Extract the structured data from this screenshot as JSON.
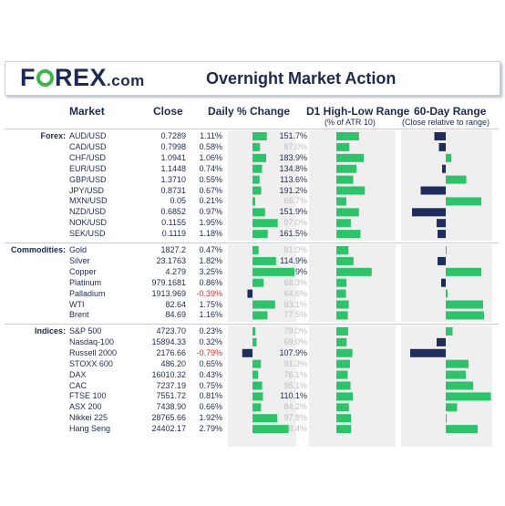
{
  "header": {
    "logo_pre": "F",
    "logo_post": "REX",
    "logo_com": ".com",
    "title": "Overnight Market Action"
  },
  "columns": {
    "market": "Market",
    "close": "Close",
    "change": "Daily % Change",
    "range": "D1 High-Low Range",
    "range_sub": "(% of ATR 10)",
    "day60": "60-Day Range",
    "day60_sub": "(Close relative to range)"
  },
  "colors": {
    "positive": "#2ec26b",
    "negative": "#1f2c5c",
    "negative_text": "#d32f2f",
    "dim_text": "#b9bec6",
    "pane": "#efefef"
  },
  "chart_data": {
    "type": "table",
    "sections": [
      {
        "label": "Forex:",
        "rows": [
          {
            "market": "AUD/USD",
            "close": "0.7289",
            "change": "1.11%",
            "change_val": 1.11,
            "range": "151.7%",
            "range_val": 151.7,
            "day60": -0.25
          },
          {
            "market": "CAD/USD",
            "close": "0.7998",
            "change": "0.58%",
            "change_val": 0.58,
            "range": "87.0%",
            "range_val": 87.0,
            "day60": -0.15
          },
          {
            "market": "CHF/USD",
            "close": "1.0941",
            "change": "1.06%",
            "change_val": 1.06,
            "range": "183.9%",
            "range_val": 183.9,
            "day60": 0.12
          },
          {
            "market": "EUR/USD",
            "close": "1.1448",
            "change": "0.74%",
            "change_val": 0.74,
            "range": "134.8%",
            "range_val": 134.8,
            "day60": -0.08
          },
          {
            "market": "GBP/USD",
            "close": "1.3710",
            "change": "0.55%",
            "change_val": 0.55,
            "range": "113.6%",
            "range_val": 113.6,
            "day60": 0.45
          },
          {
            "market": "JPY/USD",
            "close": "0.8731",
            "change": "0.67%",
            "change_val": 0.67,
            "range": "191.2%",
            "range_val": 191.2,
            "day60": -0.55
          },
          {
            "market": "MXN/USD",
            "close": "0.05",
            "change": "0.21%",
            "change_val": 0.21,
            "range": "66.7%",
            "range_val": 66.7,
            "day60": 0.78
          },
          {
            "market": "NZD/USD",
            "close": "0.6852",
            "change": "0.97%",
            "change_val": 0.97,
            "range": "151.9%",
            "range_val": 151.9,
            "day60": -0.74
          },
          {
            "market": "NOK/USD",
            "close": "0.1155",
            "change": "1.95%",
            "change_val": 1.95,
            "range": "97.0%",
            "range_val": 97.0,
            "day60": -0.2
          },
          {
            "market": "SEK/USD",
            "close": "0.1119",
            "change": "1.18%",
            "change_val": 1.18,
            "range": "161.5%",
            "range_val": 161.5,
            "day60": -0.18
          }
        ]
      },
      {
        "label": "Commodities:",
        "rows": [
          {
            "market": "Gold",
            "close": "1827.2",
            "change": "0.47%",
            "change_val": 0.47,
            "range": "81.0%",
            "range_val": 81.0,
            "day60": 0
          },
          {
            "market": "Silver",
            "close": "23.1763",
            "change": "1.82%",
            "change_val": 1.82,
            "range": "114.9%",
            "range_val": 114.9,
            "day60": -0.18
          },
          {
            "market": "Copper",
            "close": "4.279",
            "change": "3.25%",
            "change_val": 3.25,
            "range": "236.9%",
            "range_val": 236.9,
            "day60": 0.78
          },
          {
            "market": "Platinum",
            "close": "979.1681",
            "change": "0.86%",
            "change_val": 0.86,
            "range": "68.3%",
            "range_val": 68.3,
            "day60": -0.1
          },
          {
            "market": "Palladium",
            "close": "1913.969",
            "change": "-0.39%",
            "change_val": -0.39,
            "range": "64.6%",
            "range_val": 64.6,
            "day60": 0.04
          },
          {
            "market": "WTI",
            "close": "82.64",
            "change": "1.75%",
            "change_val": 1.75,
            "range": "83.1%",
            "range_val": 83.1,
            "day60": 0.82
          },
          {
            "market": "Brent",
            "close": "84.69",
            "change": "1.16%",
            "change_val": 1.16,
            "range": "77.5%",
            "range_val": 77.5,
            "day60": 0.84
          }
        ]
      },
      {
        "label": "Indices:",
        "rows": [
          {
            "market": "S&P 500",
            "close": "4723.70",
            "change": "0.23%",
            "change_val": 0.23,
            "range": "79.0%",
            "range_val": 79.0,
            "day60": 0.15
          },
          {
            "market": "Nasdaq-100",
            "close": "15894.33",
            "change": "0.32%",
            "change_val": 0.32,
            "range": "69.0%",
            "range_val": 69.0,
            "day60": -0.2
          },
          {
            "market": "Russell 2000",
            "close": "2176.66",
            "change": "-0.79%",
            "change_val": -0.79,
            "range": "107.9%",
            "range_val": 107.9,
            "day60": -0.78
          },
          {
            "market": "STOXX 600",
            "close": "486.20",
            "change": "0.65%",
            "change_val": 0.65,
            "range": "91.3%",
            "range_val": 91.3,
            "day60": 0.5
          },
          {
            "market": "DAX",
            "close": "16010.32",
            "change": "0.43%",
            "change_val": 0.43,
            "range": "76.1%",
            "range_val": 76.1,
            "day60": 0.44
          },
          {
            "market": "CAC",
            "close": "7237.19",
            "change": "0.75%",
            "change_val": 0.75,
            "range": "95.1%",
            "range_val": 95.1,
            "day60": 0.6
          },
          {
            "market": "FTSE 100",
            "close": "7551.72",
            "change": "0.81%",
            "change_val": 0.81,
            "range": "110.1%",
            "range_val": 110.1,
            "day60": 0.99
          },
          {
            "market": "ASX 200",
            "close": "7438.90",
            "change": "0.66%",
            "change_val": 0.66,
            "range": "84.2%",
            "range_val": 84.2,
            "day60": 0.25
          },
          {
            "market": "Nikkei 225",
            "close": "28765.66",
            "change": "1.92%",
            "change_val": 1.92,
            "range": "97.8%",
            "range_val": 97.8,
            "day60": 0.02
          },
          {
            "market": "Hang Seng",
            "close": "24402.17",
            "change": "2.79%",
            "change_val": 2.79,
            "range": "98.4%",
            "range_val": 98.4,
            "day60": 0.7
          }
        ]
      }
    ]
  }
}
